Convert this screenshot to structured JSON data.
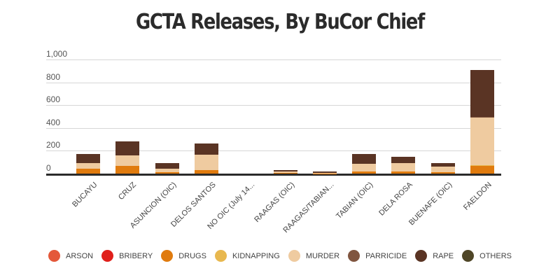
{
  "title": "GCTA Releases, By BuCor Chief",
  "chart_data": {
    "type": "bar",
    "stacked": true,
    "title": "GCTA Releases, By BuCor Chief",
    "xlabel": "",
    "ylabel": "",
    "ylim": [
      0,
      1000
    ],
    "yticks": [
      "0",
      "200",
      "400",
      "600",
      "800",
      "1,000"
    ],
    "grid": true,
    "legend_position": "bottom",
    "categories": [
      "BUCAYU",
      "CRUZ",
      "ASUNCION (OIC)",
      "DELOS SANTOS",
      "NO OIC (July 14...",
      "RAAGAS (OIC)",
      "RAAGAS/TABIAN...",
      "TABIAN (OIC)",
      "DELA ROSA",
      "BUENAFE (OIC)",
      "FAELDON"
    ],
    "series": [
      {
        "name": "ARSON",
        "color": "#e4583a",
        "values": [
          0,
          0,
          0,
          0,
          0,
          0,
          0,
          0,
          0,
          0,
          0
        ]
      },
      {
        "name": "BRIBERY",
        "color": "#e0201b",
        "values": [
          0,
          0,
          0,
          0,
          0,
          0,
          0,
          0,
          0,
          0,
          0
        ]
      },
      {
        "name": "DRUGS",
        "color": "#e07b0e",
        "values": [
          45,
          65,
          15,
          30,
          0,
          5,
          3,
          20,
          20,
          10,
          65
        ]
      },
      {
        "name": "KIDNAPPING",
        "color": "#e8b84f",
        "values": [
          0,
          0,
          0,
          0,
          0,
          0,
          0,
          0,
          0,
          0,
          10
        ]
      },
      {
        "name": "MURDER",
        "color": "#efcba0",
        "values": [
          45,
          95,
          25,
          135,
          0,
          15,
          5,
          65,
          75,
          50,
          415
        ]
      },
      {
        "name": "PARRICIDE",
        "color": "#80553f",
        "values": [
          0,
          0,
          0,
          0,
          0,
          0,
          0,
          0,
          0,
          0,
          5
        ]
      },
      {
        "name": "RAPE",
        "color": "#5a3424",
        "values": [
          80,
          120,
          50,
          100,
          0,
          10,
          12,
          85,
          50,
          35,
          410
        ]
      },
      {
        "name": "OTHERS",
        "color": "#4f4627",
        "values": [
          0,
          0,
          0,
          0,
          0,
          0,
          0,
          0,
          0,
          0,
          0
        ]
      }
    ]
  }
}
